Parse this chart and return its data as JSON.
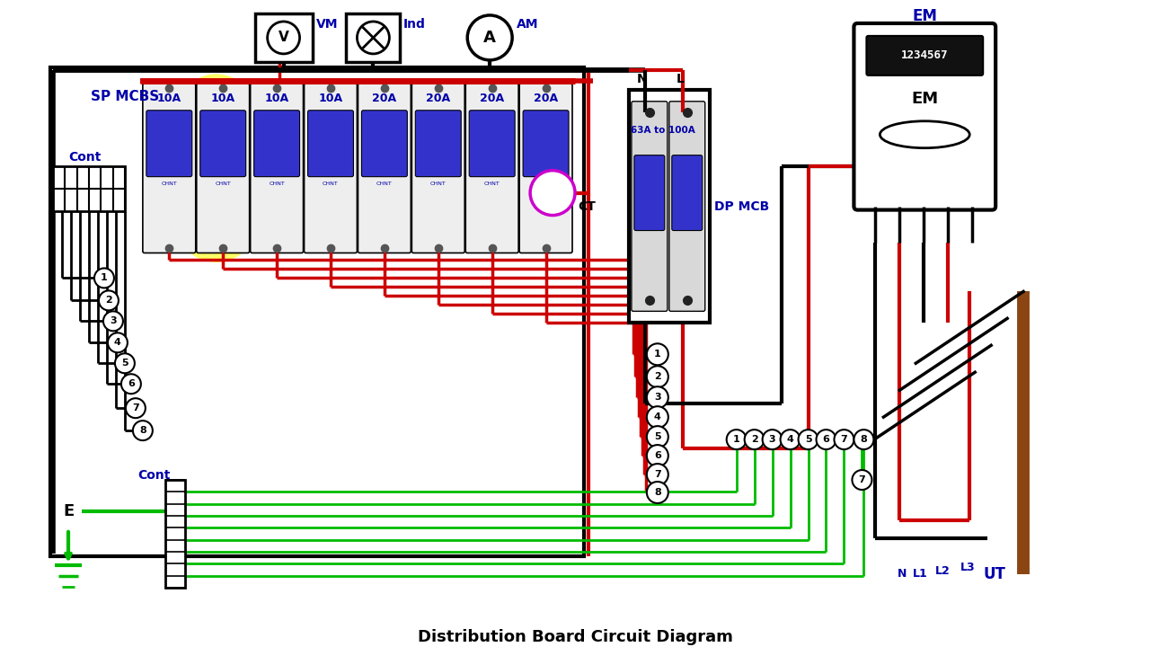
{
  "bg_color": "#ffffff",
  "title": "Distribution Board Circuit Diagram",
  "colors": {
    "black": "#000000",
    "red": "#cc0000",
    "green": "#00bb00",
    "dark_blue": "#0000aa",
    "yellow": "#ffff00",
    "purple": "#cc00cc",
    "white": "#ffffff",
    "brown": "#8B4513",
    "mcb_blue": "#3333cc",
    "light_gray": "#d8d8d8",
    "dark_gray": "#444444"
  },
  "labels": {
    "sp_mcbs": "SP MCBS",
    "cont_top": "Cont",
    "cont_bottom": "Cont",
    "e": "E",
    "vm": "VM",
    "ind": "Ind",
    "am": "AM",
    "ct": "CT",
    "dp_mcb": "DP MCB",
    "mcb_label": "63A to 100A",
    "em": "EM",
    "ut": "UT",
    "n_label": "N",
    "l_label": "L",
    "n_bottom": "N",
    "l1_bottom": "L1",
    "l2_bottom": "L2",
    "l3_bottom": "L3",
    "mcb_ratings": [
      "10A",
      "10A",
      "10A",
      "10A",
      "20A",
      "20A",
      "20A",
      "20A"
    ],
    "em_display": "1234567",
    "em_sub": "EM"
  }
}
